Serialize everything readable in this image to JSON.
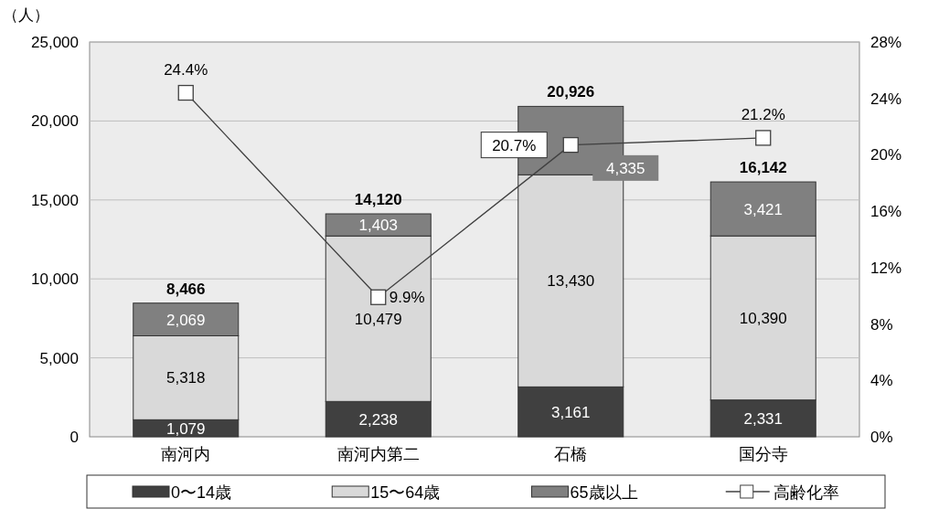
{
  "chart_data": {
    "type": "bar",
    "stacked": true,
    "ylabel": "（人）",
    "categories": [
      "南河内",
      "南河内第二",
      "石橋",
      "国分寺"
    ],
    "series": [
      {
        "name": "0〜14歳",
        "color": "#404040",
        "values": [
          1079,
          2238,
          3161,
          2331
        ],
        "value_labels": [
          "1,079",
          "2,238",
          "3,161",
          "2,331"
        ]
      },
      {
        "name": "15〜64歳",
        "color": "#d9d9d9",
        "values": [
          5318,
          10479,
          13430,
          10390
        ],
        "value_labels": [
          "5,318",
          "10,479",
          "13,430",
          "10,390"
        ]
      },
      {
        "name": "65歳以上",
        "color": "#808080",
        "values": [
          2069,
          1403,
          4335,
          3421
        ],
        "value_labels": [
          "2,069",
          "1,403",
          "4,335",
          "3,421"
        ]
      },
      {
        "name": "高齢化率",
        "type": "line",
        "axis": "y2",
        "marker": "square",
        "color": "#404040",
        "values": [
          24.4,
          9.9,
          20.7,
          21.2
        ],
        "value_labels": [
          "24.4%",
          "9.9%",
          "20.7%",
          "21.2%"
        ]
      }
    ],
    "totals": [
      "8,466",
      "14,120",
      "20,926",
      "16,142"
    ],
    "ylim": [
      0,
      25000
    ],
    "yticks": [
      {
        "value": 0,
        "label": "0"
      },
      {
        "value": 5000,
        "label": "5,000"
      },
      {
        "value": 10000,
        "label": "10,000"
      },
      {
        "value": 15000,
        "label": "15,000"
      },
      {
        "value": 20000,
        "label": "20,000"
      },
      {
        "value": 25000,
        "label": "25,000"
      }
    ],
    "y2lim": [
      0,
      28
    ],
    "y2ticks": [
      {
        "value": 0,
        "label": "0%"
      },
      {
        "value": 4,
        "label": "4%"
      },
      {
        "value": 8,
        "label": "8%"
      },
      {
        "value": 12,
        "label": "12%"
      },
      {
        "value": 16,
        "label": "16%"
      },
      {
        "value": 20,
        "label": "20%"
      },
      {
        "value": 24,
        "label": "24%"
      },
      {
        "value": 28,
        "label": "28%"
      }
    ],
    "grid": "y",
    "legend": "bottom"
  }
}
